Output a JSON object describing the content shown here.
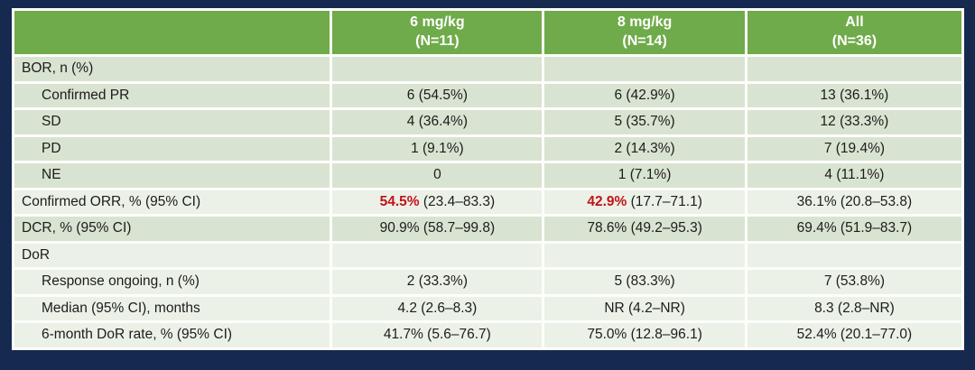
{
  "colors": {
    "navy_background": "#16294e",
    "header_green": "#6fab4a",
    "row_sage": "#d9e3d1",
    "row_light": "#ecf1e8",
    "accent_red": "#c01418",
    "text": "#1c1c1c"
  },
  "table": {
    "columns": [
      {
        "label": "6 mg/kg",
        "sub": "(N=11)"
      },
      {
        "label": "8 mg/kg",
        "sub": "(N=14)"
      },
      {
        "label": "All",
        "sub": "(N=36)"
      }
    ],
    "rows": [
      {
        "label": "BOR, n (%)",
        "indent": false,
        "shade": "sage",
        "values": [
          {
            "text": ""
          },
          {
            "text": ""
          },
          {
            "text": ""
          }
        ]
      },
      {
        "label": "Confirmed PR",
        "indent": true,
        "shade": "sage",
        "values": [
          {
            "text": "6 (54.5%)"
          },
          {
            "text": "6 (42.9%)"
          },
          {
            "text": "13 (36.1%)"
          }
        ]
      },
      {
        "label": "SD",
        "indent": true,
        "shade": "sage",
        "values": [
          {
            "text": "4 (36.4%)"
          },
          {
            "text": "5 (35.7%)"
          },
          {
            "text": "12 (33.3%)"
          }
        ]
      },
      {
        "label": "PD",
        "indent": true,
        "shade": "sage",
        "values": [
          {
            "text": "1 (9.1%)"
          },
          {
            "text": "2 (14.3%)"
          },
          {
            "text": "7 (19.4%)"
          }
        ]
      },
      {
        "label": "NE",
        "indent": true,
        "shade": "sage",
        "values": [
          {
            "text": "0"
          },
          {
            "text": "1 (7.1%)"
          },
          {
            "text": "4 (11.1%)"
          }
        ]
      },
      {
        "label": "Confirmed ORR, % (95% CI)",
        "indent": false,
        "shade": "light",
        "values": [
          {
            "em": "54.5%",
            "text": " (23.4–83.3)"
          },
          {
            "em": "42.9%",
            "text": " (17.7–71.1)"
          },
          {
            "text": "36.1% (20.8–53.8)"
          }
        ]
      },
      {
        "label": "DCR, % (95% CI)",
        "indent": false,
        "shade": "sage",
        "values": [
          {
            "text": "90.9% (58.7–99.8)"
          },
          {
            "text": "78.6% (49.2–95.3)"
          },
          {
            "text": "69.4% (51.9–83.7)"
          }
        ]
      },
      {
        "label": "DoR",
        "indent": false,
        "shade": "light",
        "values": [
          {
            "text": ""
          },
          {
            "text": ""
          },
          {
            "text": ""
          }
        ]
      },
      {
        "label": "Response ongoing, n (%)",
        "indent": true,
        "shade": "light",
        "values": [
          {
            "text": "2 (33.3%)"
          },
          {
            "text": "5 (83.3%)"
          },
          {
            "text": "7 (53.8%)"
          }
        ]
      },
      {
        "label": "Median (95% CI), months",
        "indent": true,
        "shade": "light",
        "values": [
          {
            "text": "4.2 (2.6–8.3)"
          },
          {
            "text": "NR (4.2–NR)"
          },
          {
            "text": "8.3 (2.8–NR)"
          }
        ]
      },
      {
        "label": "6-month DoR rate, % (95% CI)",
        "indent": true,
        "shade": "light",
        "values": [
          {
            "text": "41.7% (5.6–76.7)"
          },
          {
            "text": "75.0% (12.8–96.1)"
          },
          {
            "text": "52.4% (20.1–77.0)"
          }
        ]
      }
    ]
  }
}
